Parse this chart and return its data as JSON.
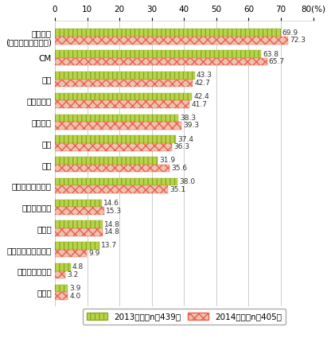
{
  "categories": [
    "情報番組\n(パブリシティ含む)",
    "CM",
    "報道",
    "バラエティ",
    "スポーツ",
    "教養",
    "音楽",
    "ドキュメンタリー",
    "ワイドショー",
    "ドラマ",
    "テレビショッピング",
    "アニメーション",
    "その他"
  ],
  "values_2013": [
    69.9,
    63.8,
    43.3,
    42.4,
    38.3,
    37.4,
    31.9,
    38.0,
    14.6,
    14.8,
    13.7,
    4.8,
    3.9
  ],
  "values_2014": [
    72.3,
    65.7,
    42.7,
    41.7,
    39.3,
    36.3,
    35.6,
    35.1,
    15.3,
    14.8,
    9.9,
    3.2,
    4.0
  ],
  "color_2013": "#b8d44a",
  "color_2014": "#e8604a",
  "hatch_2013": "|||",
  "hatch_2014": "xxx",
  "bar_height": 0.36,
  "xlim": [
    0,
    80
  ],
  "xticks": [
    0,
    10,
    20,
    30,
    40,
    50,
    60,
    70,
    80
  ],
  "xtick_labels": [
    "0",
    "10",
    "20",
    "30",
    "40",
    "50",
    "60",
    "70",
    "80(%)"
  ],
  "legend_2013": "2013年度（n＝439）",
  "legend_2014": "2014年度（n＝405）",
  "value_fontsize": 6.5,
  "label_fontsize": 7.5,
  "legend_fontsize": 7.5,
  "tick_fontsize": 7.5,
  "bg_color": "#ffffff",
  "grid_color": "#cccccc"
}
